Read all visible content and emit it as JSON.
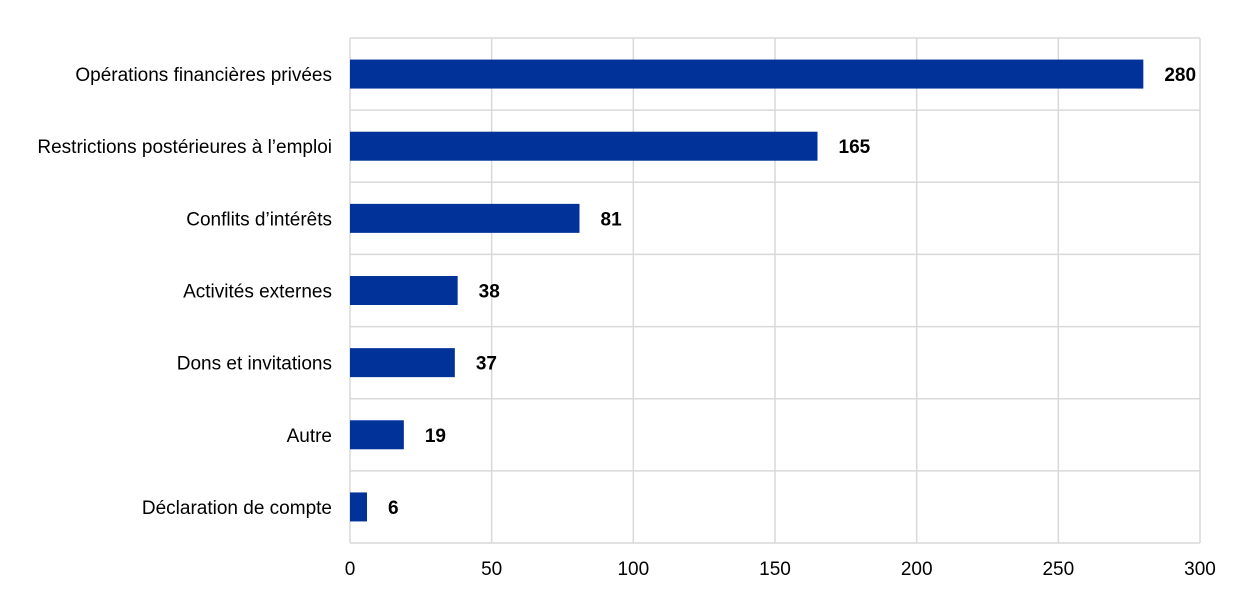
{
  "chart_data": {
    "type": "bar",
    "orientation": "horizontal",
    "categories": [
      "Opérations financières privées",
      "Restrictions postérieures à l’emploi",
      "Conflits d’intérêts",
      "Activités externes",
      "Dons et invitations",
      "Autre",
      "Déclaration de compte"
    ],
    "values": [
      280,
      165,
      81,
      38,
      37,
      19,
      6
    ],
    "xlim": [
      0,
      300
    ],
    "xticks": [
      0,
      50,
      100,
      150,
      200,
      250,
      300
    ],
    "grid": true,
    "legend": "none",
    "data_labels": true,
    "title": "",
    "xlabel": "",
    "ylabel": "",
    "colors": {
      "bar": "#003299",
      "grid": "#d9d9d9",
      "text": "#000000"
    }
  }
}
